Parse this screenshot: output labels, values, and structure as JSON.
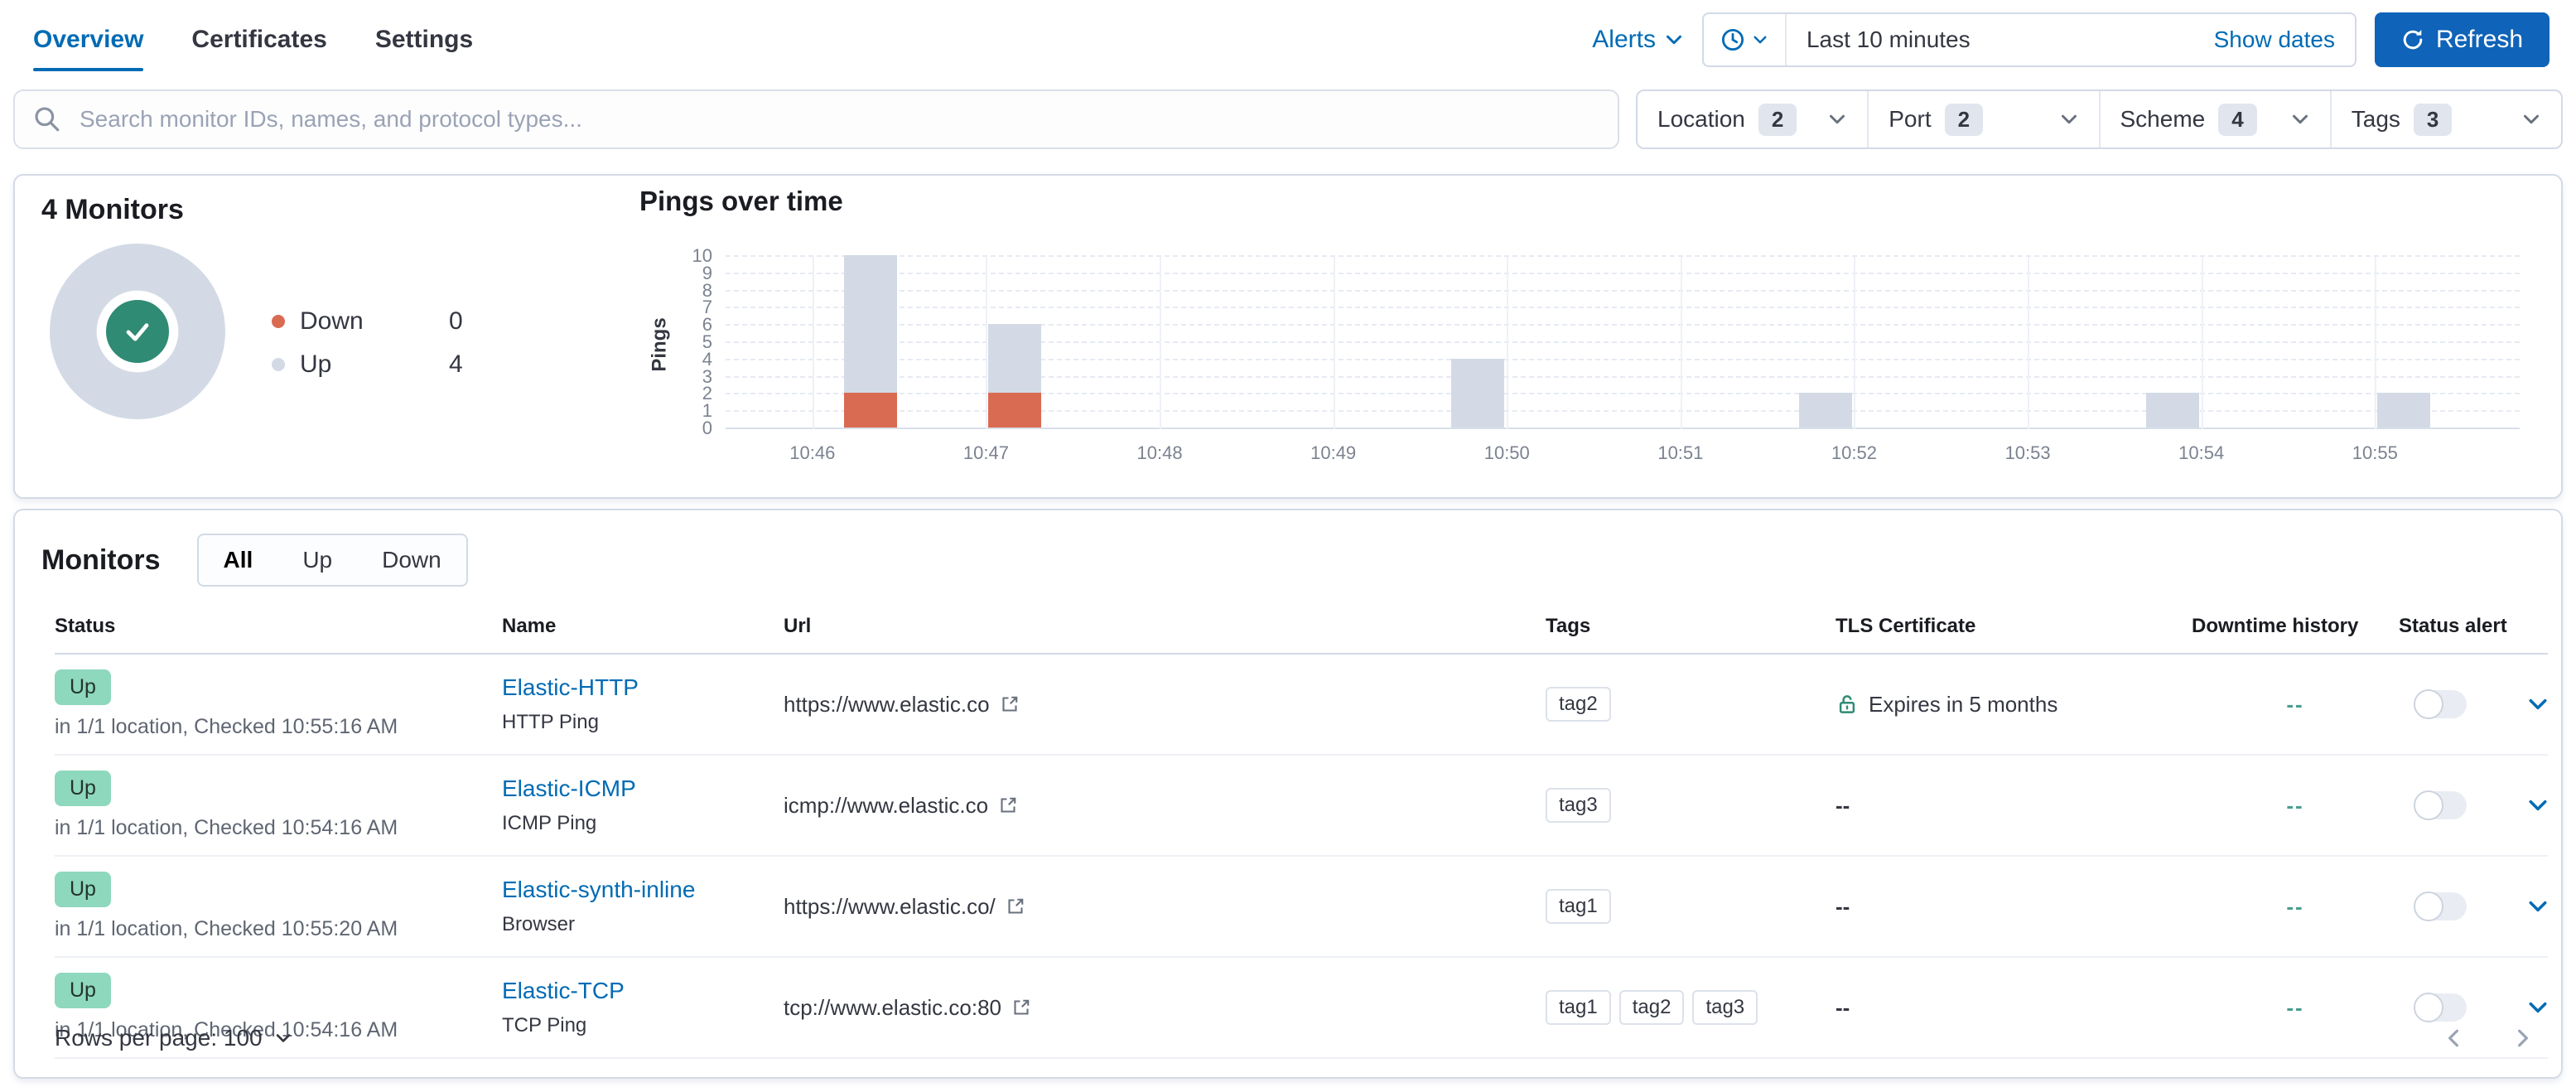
{
  "colors": {
    "link": "#006bb4",
    "primary": "#0f63b8",
    "border": "#d3dae6",
    "badge-count-bg": "#e0e5ee",
    "up-badge": "#8ed8bd",
    "bar-up": "#d3dae6",
    "bar-down": "#d96b52",
    "donut-ring": "#d3dae6",
    "donut-center": "#2f8b74",
    "downtime-dash": "#4a9e90"
  },
  "header": {
    "tabs": [
      {
        "label": "Overview",
        "active": true
      },
      {
        "label": "Certificates",
        "active": false
      },
      {
        "label": "Settings",
        "active": false
      }
    ],
    "alerts_label": "Alerts",
    "time_range": "Last 10 minutes",
    "show_dates_label": "Show dates",
    "refresh_label": "Refresh"
  },
  "search": {
    "placeholder": "Search monitor IDs, names, and protocol types...",
    "filters": [
      {
        "label": "Location",
        "count": "2"
      },
      {
        "label": "Port",
        "count": "2"
      },
      {
        "label": "Scheme",
        "count": "4"
      },
      {
        "label": "Tags",
        "count": "3"
      }
    ]
  },
  "snapshot": {
    "title": "4 Monitors",
    "legend": [
      {
        "label": "Down",
        "value": "0",
        "color": "#d96b52"
      },
      {
        "label": "Up",
        "value": "4",
        "color": "#d3dae6"
      }
    ]
  },
  "chart_data": {
    "type": "bar",
    "title": "Pings over time",
    "xlabel": "",
    "ylabel": "Pings",
    "ylim": [
      0,
      10
    ],
    "y_ticks": [
      0,
      1,
      2,
      3,
      4,
      5,
      6,
      7,
      8,
      9,
      10
    ],
    "x_ticks": [
      "10:46",
      "10:47",
      "10:48",
      "10:49",
      "10:50",
      "10:51",
      "10:52",
      "10:53",
      "10:54",
      "10:55"
    ],
    "axis_start_seconds": 38730,
    "axis_end_seconds": 39350,
    "grid": true,
    "legend_position": "none",
    "series": [
      {
        "name": "Up",
        "color": "#d3dae6"
      },
      {
        "name": "Down",
        "color": "#d96b52"
      }
    ],
    "bars": [
      {
        "time": "10:46:20",
        "seconds": 38780,
        "up": 8,
        "down": 2
      },
      {
        "time": "10:47:10",
        "seconds": 38830,
        "up": 4,
        "down": 2
      },
      {
        "time": "10:49:50",
        "seconds": 38990,
        "up": 4,
        "down": 0
      },
      {
        "time": "10:51:50",
        "seconds": 39110,
        "up": 2,
        "down": 0
      },
      {
        "time": "10:53:50",
        "seconds": 39230,
        "up": 2,
        "down": 0
      },
      {
        "time": "10:55:10",
        "seconds": 39310,
        "up": 2,
        "down": 0
      }
    ]
  },
  "monitors": {
    "title": "Monitors",
    "status_filters": [
      {
        "label": "All",
        "active": true
      },
      {
        "label": "Up",
        "active": false
      },
      {
        "label": "Down",
        "active": false
      }
    ],
    "columns": [
      "Status",
      "Name",
      "Url",
      "Tags",
      "TLS Certificate",
      "Downtime history",
      "Status alert"
    ],
    "rows": [
      {
        "status": "Up",
        "status_detail": "in 1/1 location, Checked 10:55:16 AM",
        "name": "Elastic-HTTP",
        "type": "HTTP Ping",
        "url": "https://www.elastic.co",
        "tags": [
          "tag2"
        ],
        "tls": "Expires in 5 months",
        "tls_has_lock": true,
        "downtime": "--",
        "alert_enabled": false
      },
      {
        "status": "Up",
        "status_detail": "in 1/1 location, Checked 10:54:16 AM",
        "name": "Elastic-ICMP",
        "type": "ICMP Ping",
        "url": "icmp://www.elastic.co",
        "tags": [
          "tag3"
        ],
        "tls": "--",
        "tls_has_lock": false,
        "downtime": "--",
        "alert_enabled": false
      },
      {
        "status": "Up",
        "status_detail": "in 1/1 location, Checked 10:55:20 AM",
        "name": "Elastic-synth-inline",
        "type": "Browser",
        "url": "https://www.elastic.co/",
        "tags": [
          "tag1"
        ],
        "tls": "--",
        "tls_has_lock": false,
        "downtime": "--",
        "alert_enabled": false
      },
      {
        "status": "Up",
        "status_detail": "in 1/1 location, Checked 10:54:16 AM",
        "name": "Elastic-TCP",
        "type": "TCP Ping",
        "url": "tcp://www.elastic.co:80",
        "tags": [
          "tag1",
          "tag2",
          "tag3"
        ],
        "tls": "--",
        "tls_has_lock": false,
        "downtime": "--",
        "alert_enabled": false
      }
    ],
    "rows_per_page_label": "Rows per page: 100"
  }
}
